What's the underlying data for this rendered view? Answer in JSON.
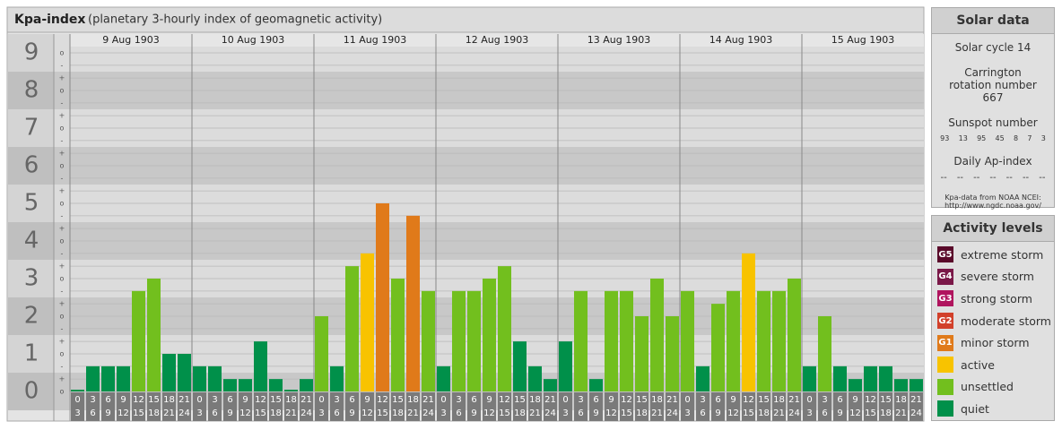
{
  "chart_data": {
    "type": "bar",
    "title": "Kpa-index",
    "subtitle": "(planetary 3-hourly index of geomagnetic activity)",
    "ylim": [
      0,
      9.5
    ],
    "yticks": [
      0,
      1,
      2,
      3,
      4,
      5,
      6,
      7,
      8,
      9
    ],
    "minor_yticks": [
      {
        "value": 9,
        "label": "o"
      },
      {
        "value": 8.67,
        "label": "-"
      },
      {
        "value": 8.33,
        "label": "+"
      },
      {
        "value": 8,
        "label": "o"
      },
      {
        "value": 7.67,
        "label": "-"
      },
      {
        "value": 7.33,
        "label": "+"
      },
      {
        "value": 7,
        "label": "o"
      },
      {
        "value": 6.67,
        "label": "-"
      },
      {
        "value": 6.33,
        "label": "+"
      },
      {
        "value": 6,
        "label": "o"
      },
      {
        "value": 5.67,
        "label": "-"
      },
      {
        "value": 5.33,
        "label": "+"
      },
      {
        "value": 5,
        "label": "o"
      },
      {
        "value": 4.67,
        "label": "-"
      },
      {
        "value": 4.33,
        "label": "+"
      },
      {
        "value": 4,
        "label": "o"
      },
      {
        "value": 3.67,
        "label": "-"
      },
      {
        "value": 3.33,
        "label": "+"
      },
      {
        "value": 3,
        "label": "o"
      },
      {
        "value": 2.67,
        "label": "-"
      },
      {
        "value": 2.33,
        "label": "+"
      },
      {
        "value": 2,
        "label": "o"
      },
      {
        "value": 1.67,
        "label": "-"
      },
      {
        "value": 1.33,
        "label": "+"
      },
      {
        "value": 1,
        "label": "o"
      },
      {
        "value": 0.67,
        "label": "-"
      },
      {
        "value": 0.33,
        "label": "+"
      },
      {
        "value": 0,
        "label": "o"
      }
    ],
    "hours": [
      {
        "start": "0",
        "end": "3"
      },
      {
        "start": "3",
        "end": "6"
      },
      {
        "start": "6",
        "end": "9"
      },
      {
        "start": "9",
        "end": "12"
      },
      {
        "start": "12",
        "end": "15"
      },
      {
        "start": "15",
        "end": "18"
      },
      {
        "start": "18",
        "end": "21"
      },
      {
        "start": "21",
        "end": "24"
      }
    ],
    "days": [
      {
        "date": "9 Aug 1903",
        "values": [
          0,
          0.67,
          0.67,
          0.67,
          2.67,
          3,
          1,
          1
        ],
        "colors": [
          "#00904a",
          "#00904a",
          "#00904a",
          "#00904a",
          "#72bf1e",
          "#72bf1e",
          "#00904a",
          "#00904a"
        ]
      },
      {
        "date": "10 Aug 1903",
        "values": [
          0.67,
          0.67,
          0.33,
          0.33,
          1.33,
          0.33,
          0,
          0.33
        ],
        "colors": [
          "#00904a",
          "#00904a",
          "#00904a",
          "#00904a",
          "#00904a",
          "#00904a",
          "#00904a",
          "#00904a"
        ]
      },
      {
        "date": "11 Aug 1903",
        "values": [
          2,
          0.67,
          3.33,
          3.67,
          5,
          3,
          4.67,
          2.67
        ],
        "colors": [
          "#72bf1e",
          "#00904a",
          "#72bf1e",
          "#f8c300",
          "#e07a1a",
          "#72bf1e",
          "#e07a1a",
          "#72bf1e"
        ]
      },
      {
        "date": "12 Aug 1903",
        "values": [
          0.67,
          2.67,
          2.67,
          3,
          3.33,
          1.33,
          0.67,
          0.33
        ],
        "colors": [
          "#00904a",
          "#72bf1e",
          "#72bf1e",
          "#72bf1e",
          "#72bf1e",
          "#00904a",
          "#00904a",
          "#00904a"
        ]
      },
      {
        "date": "13 Aug 1903",
        "values": [
          1.33,
          2.67,
          0.33,
          2.67,
          2.67,
          2,
          3,
          2
        ],
        "colors": [
          "#00904a",
          "#72bf1e",
          "#00904a",
          "#72bf1e",
          "#72bf1e",
          "#72bf1e",
          "#72bf1e",
          "#72bf1e"
        ]
      },
      {
        "date": "14 Aug 1903",
        "values": [
          2.67,
          0.67,
          2.33,
          2.67,
          3.67,
          2.67,
          2.67,
          3
        ],
        "colors": [
          "#72bf1e",
          "#00904a",
          "#72bf1e",
          "#72bf1e",
          "#f8c300",
          "#72bf1e",
          "#72bf1e",
          "#72bf1e"
        ]
      },
      {
        "date": "15 Aug 1903",
        "values": [
          0.67,
          2,
          0.67,
          0.33,
          0.67,
          0.67,
          0.33,
          0.33
        ],
        "colors": [
          "#00904a",
          "#72bf1e",
          "#00904a",
          "#00904a",
          "#00904a",
          "#00904a",
          "#00904a",
          "#00904a"
        ]
      }
    ]
  },
  "solar_data": {
    "title": "Solar data",
    "cycle": "Solar cycle 14",
    "carrington": "Carrington rotation number 667",
    "sunspot_title": "Sunspot number",
    "sunspots": [
      93,
      13,
      95,
      45,
      8,
      7,
      3
    ],
    "ap_title": "Daily Ap-index",
    "ap": [
      "--",
      "--",
      "--",
      "--",
      "--",
      "--",
      "--"
    ],
    "source": "Kpa-data from NOAA NCEI: http://www.ngdc.noaa.gov/"
  },
  "activity_levels": {
    "title": "Activity levels",
    "items": [
      {
        "badge": "G5",
        "label": "extreme storm",
        "color": "#5a0a2a"
      },
      {
        "badge": "G4",
        "label": "severe storm",
        "color": "#7a1848"
      },
      {
        "badge": "G3",
        "label": "strong storm",
        "color": "#b0145e"
      },
      {
        "badge": "G2",
        "label": "moderate storm",
        "color": "#d2402a"
      },
      {
        "badge": "G1",
        "label": "minor storm",
        "color": "#e07a1a"
      },
      {
        "badge": null,
        "label": "active",
        "color": "#f8c300"
      },
      {
        "badge": null,
        "label": "unsettled",
        "color": "#72bf1e"
      },
      {
        "badge": null,
        "label": "quiet",
        "color": "#00904a"
      }
    ]
  }
}
